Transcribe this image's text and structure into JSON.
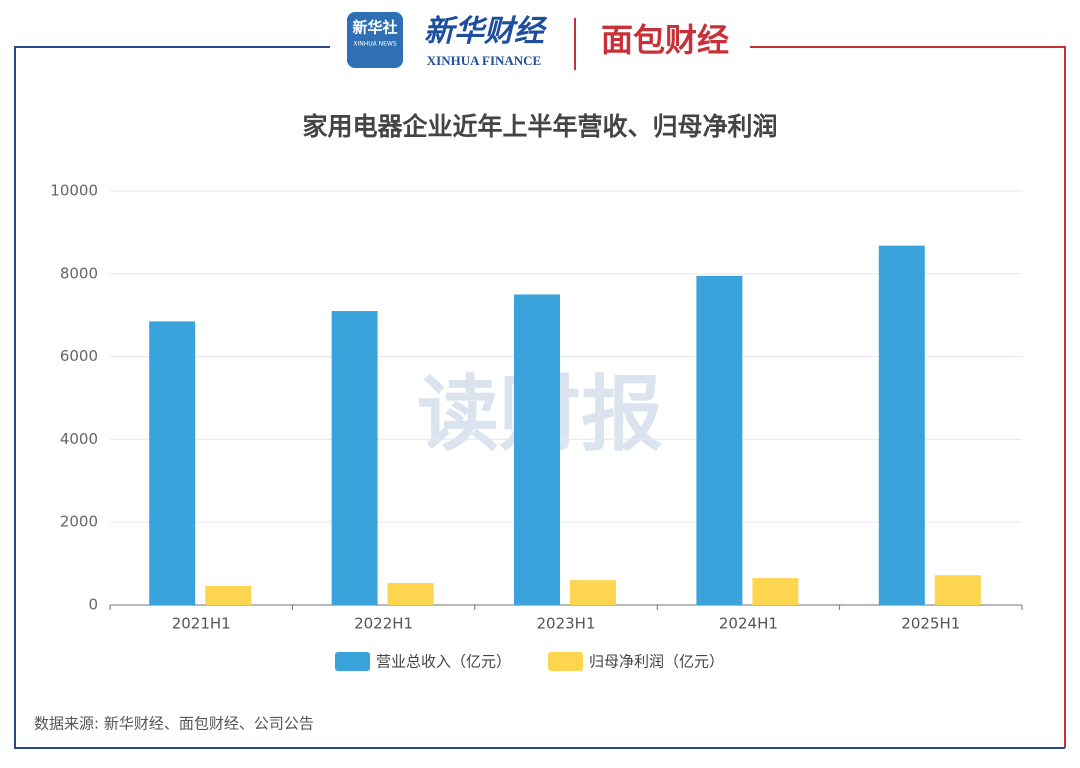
{
  "header": {
    "logo_news": "新华社",
    "logo_news_en": "XINHUA NEWS",
    "logo_finance": "新华财经",
    "logo_finance_en": "XINHUA FINANCE",
    "logo_bread": "面包财经"
  },
  "chart_data": {
    "type": "bar",
    "title": "家用电器企业近年上半年营收、归母净利润",
    "watermark": "读财报",
    "categories": [
      "2021H1",
      "2022H1",
      "2023H1",
      "2024H1",
      "2025H1"
    ],
    "series": [
      {
        "name": "营业总收入（亿元）",
        "color": "#3aa3dc",
        "values": [
          6850,
          7100,
          7500,
          7950,
          8680
        ]
      },
      {
        "name": "归母净利润（亿元）",
        "color": "#fdd54f",
        "values": [
          460,
          530,
          600,
          650,
          720
        ]
      }
    ],
    "ylim": [
      0,
      10000
    ],
    "yticks": [
      0,
      2000,
      4000,
      6000,
      8000,
      10000
    ],
    "grid": true,
    "legend": "bottom",
    "source": "数据来源: 新华财经、面包财经、公司公告"
  }
}
